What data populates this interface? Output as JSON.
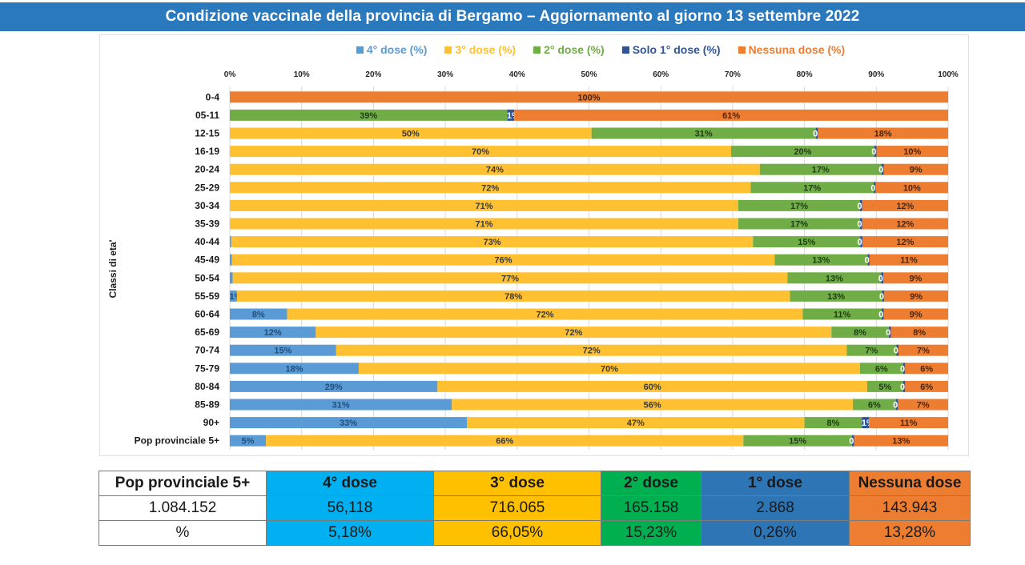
{
  "header": {
    "title": "Condizione vaccinale della provincia di Bergamo – Aggiornamento al giorno 13  settembre 2022"
  },
  "colors": {
    "dose4": "#5b9bd5",
    "dose3": "#ffc131",
    "dose2": "#70ad47",
    "dose1": "#2e5597",
    "none": "#ed7d31",
    "title_bg": "#2a79bd",
    "table_dose4": "#00b0f0",
    "table_dose3": "#ffc000",
    "table_dose2": "#00b050",
    "table_dose1": "#2e75b6",
    "table_none": "#ed7d31"
  },
  "chart_data": {
    "type": "bar",
    "orientation": "horizontal",
    "stacked": "percent",
    "title": "",
    "xlabel": "",
    "ylabel": "Classi di eta'",
    "xlim": [
      0,
      100
    ],
    "x_ticks": [
      "0%",
      "10%",
      "20%",
      "30%",
      "40%",
      "50%",
      "60%",
      "70%",
      "80%",
      "90%",
      "100%"
    ],
    "grid": true,
    "legend_position": "top",
    "categories": [
      "0-4",
      "05-11",
      "12-15",
      "16-19",
      "20-24",
      "25-29",
      "30-34",
      "35-39",
      "40-44",
      "45-49",
      "50-54",
      "55-59",
      "60-64",
      "65-69",
      "70-74",
      "75-79",
      "80-84",
      "85-89",
      "90+",
      "Pop provinciale 5+"
    ],
    "series": [
      {
        "name": "4° dose (%)",
        "key": "dose4",
        "values": [
          0,
          0,
          0,
          0,
          0,
          0,
          0,
          0,
          0.2,
          0.3,
          0.4,
          1,
          8,
          12,
          15,
          18,
          29,
          31,
          33,
          5
        ],
        "labels": [
          "",
          "",
          "",
          "",
          "",
          "",
          "",
          "",
          "",
          "",
          "",
          "1%",
          "8%",
          "12%",
          "15%",
          "18%",
          "29%",
          "31%",
          "33%",
          "5%"
        ]
      },
      {
        "name": "3° dose (%)",
        "key": "dose3",
        "values": [
          0,
          0,
          50,
          70,
          74,
          72,
          71,
          71,
          73,
          76,
          77,
          78,
          72,
          72,
          72,
          70,
          60,
          56,
          47,
          66
        ],
        "labels": [
          "",
          "",
          "50%",
          "70%",
          "74%",
          "72%",
          "71%",
          "71%",
          "73%",
          "76%",
          "77%",
          "78%",
          "72%",
          "72%",
          "72%",
          "70%",
          "60%",
          "56%",
          "47%",
          "66%"
        ]
      },
      {
        "name": "2° dose (%)",
        "key": "dose2",
        "values": [
          0,
          39,
          31,
          20,
          17,
          17,
          17,
          17,
          15,
          13,
          13,
          13,
          11,
          8,
          7,
          6,
          5,
          6,
          8,
          15
        ],
        "labels": [
          "",
          "39%",
          "31%",
          "20%",
          "17%",
          "17%",
          "17%",
          "17%",
          "15%",
          "13%",
          "13%",
          "13%",
          "11%",
          "8%",
          "7%",
          "6%",
          "5%",
          "6%",
          "8%",
          "15%"
        ]
      },
      {
        "name": "Solo 1° dose (%)",
        "key": "dose1",
        "values": [
          0,
          1,
          0.3,
          0.3,
          0.3,
          0.3,
          0.3,
          0.3,
          0.3,
          0.3,
          0.3,
          0.3,
          0.3,
          0.3,
          0.3,
          0.3,
          0.3,
          0.3,
          1,
          0.3
        ],
        "labels": [
          "",
          "1%",
          "0%",
          "0%",
          "0%",
          "0%",
          "0%",
          "0%",
          "0%",
          "0%",
          "0%",
          "0%",
          "0%",
          "0%",
          "0%",
          "0%",
          "0%",
          "0%",
          "1%",
          "0%"
        ]
      },
      {
        "name": "Nessuna dose (%)",
        "key": "none",
        "values": [
          100,
          61,
          18,
          10,
          9,
          10,
          12,
          12,
          12,
          11,
          9,
          9,
          9,
          8,
          7,
          6,
          6,
          7,
          11,
          13
        ],
        "labels": [
          "100%",
          "61%",
          "18%",
          "10%",
          "9%",
          "10%",
          "12%",
          "12%",
          "12%",
          "11%",
          "9%",
          "9%",
          "9%",
          "8%",
          "7%",
          "6%",
          "6%",
          "7%",
          "11%",
          "13%"
        ]
      }
    ]
  },
  "summary_table": {
    "header": [
      "Pop provinciale 5+",
      "4° dose",
      "3° dose",
      "2° dose",
      "1° dose",
      "Nessuna dose"
    ],
    "rows": [
      [
        "1.084.152",
        "56,118",
        "716.065",
        "165.158",
        "2.868",
        "143.943"
      ],
      [
        "%",
        "5,18%",
        "66,05%",
        "15,23%",
        "0,26%",
        "13,28%"
      ]
    ]
  }
}
